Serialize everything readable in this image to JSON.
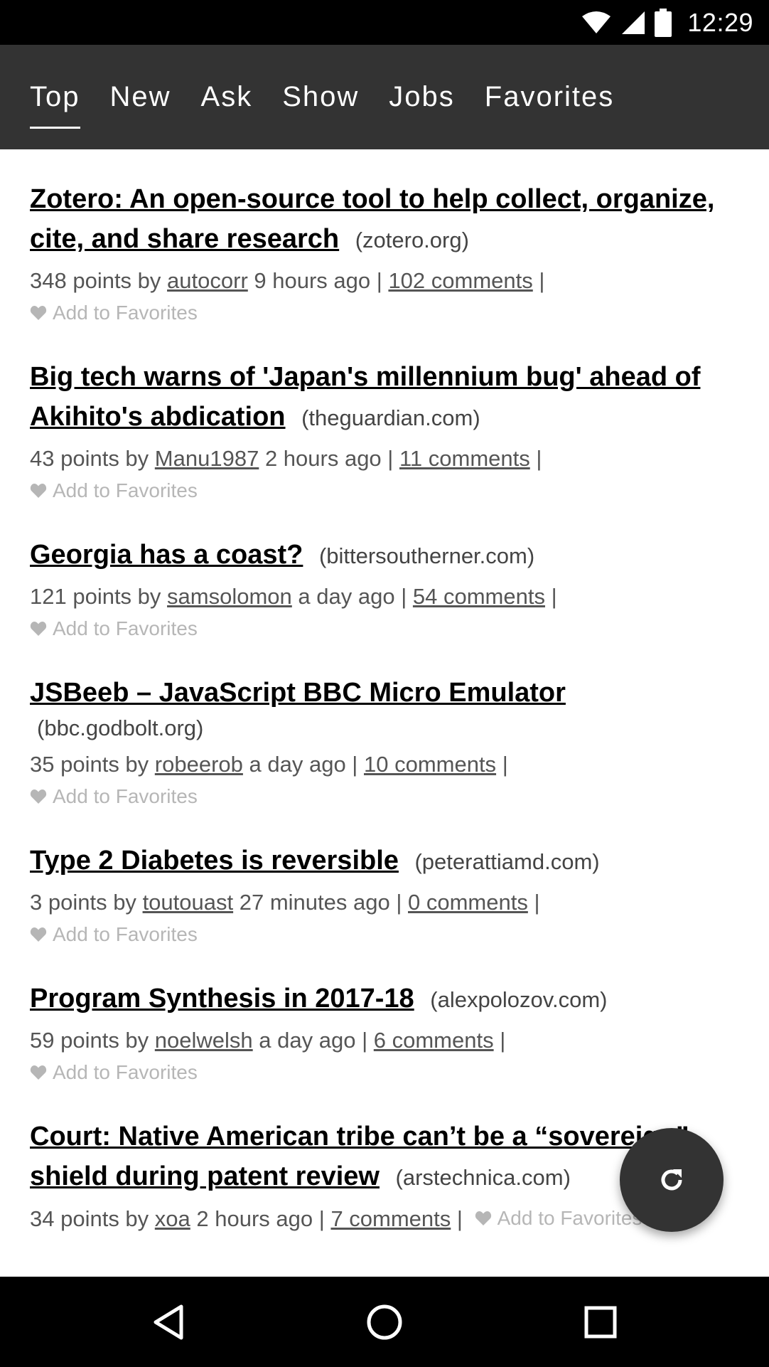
{
  "status_bar": {
    "time": "12:29"
  },
  "tabs": [
    {
      "label": "Top",
      "active": true
    },
    {
      "label": "New",
      "active": false
    },
    {
      "label": "Ask",
      "active": false
    },
    {
      "label": "Show",
      "active": false
    },
    {
      "label": "Jobs",
      "active": false
    },
    {
      "label": "Favorites",
      "active": false
    }
  ],
  "stories": [
    {
      "title": "Zotero: An open-source tool to help collect, organize, cite, and share research",
      "domain": "(zotero.org)",
      "points": "348 points by",
      "user": "autocorr",
      "age": "9 hours ago |",
      "comments": "102 comments",
      "sep": "|",
      "fav": "Add to Favorites"
    },
    {
      "title": "Big tech warns of 'Japan's millennium bug' ahead of Akihito's abdication",
      "domain": "(theguardian.com)",
      "points": "43 points by",
      "user": "Manu1987",
      "age": "2 hours ago |",
      "comments": "11 comments",
      "sep": "|",
      "fav": "Add to Favorites"
    },
    {
      "title": "Georgia has a coast?",
      "domain": "(bittersoutherner.com)",
      "points": "121 points by",
      "user": "samsolomon",
      "age": "a day ago |",
      "comments": "54 comments",
      "sep": "|",
      "fav": "Add to Favorites"
    },
    {
      "title": "JSBeeb – JavaScript BBC Micro Emulator",
      "domain": "(bbc.godbolt.org)",
      "points": "35 points by",
      "user": "robeerob",
      "age": "a day ago |",
      "comments": "10 comments",
      "sep": "|",
      "fav": "Add to Favorites"
    },
    {
      "title": "Type 2 Diabetes is reversible",
      "domain": "(peterattiamd.com)",
      "points": "3 points by",
      "user": "toutouast",
      "age": "27 minutes ago |",
      "comments": "0 comments",
      "sep": "|",
      "fav": "Add to Favorites"
    },
    {
      "title": "Program Synthesis in 2017-18",
      "domain": "(alexpolozov.com)",
      "points": "59 points by",
      "user": "noelwelsh",
      "age": "a day ago |",
      "comments": "6 comments",
      "sep": "|",
      "fav": "Add to Favorites"
    },
    {
      "title": "Court: Native American tribe can’t be a “sovereign” shield during patent review",
      "domain": "(arstechnica.com)",
      "points": "34 points by",
      "user": "xoa",
      "age": "2 hours ago |",
      "comments": "7 comments",
      "sep": "|",
      "fav": "Add to Favorites"
    }
  ],
  "icons": {
    "fab": "refresh-icon",
    "nav_back": "back-triangle-icon",
    "nav_home": "home-circle-icon",
    "nav_recents": "recents-square-icon"
  },
  "colors": {
    "app_bar": "#333333",
    "fab": "#333333",
    "favorites_text": "#b6b6b6"
  }
}
